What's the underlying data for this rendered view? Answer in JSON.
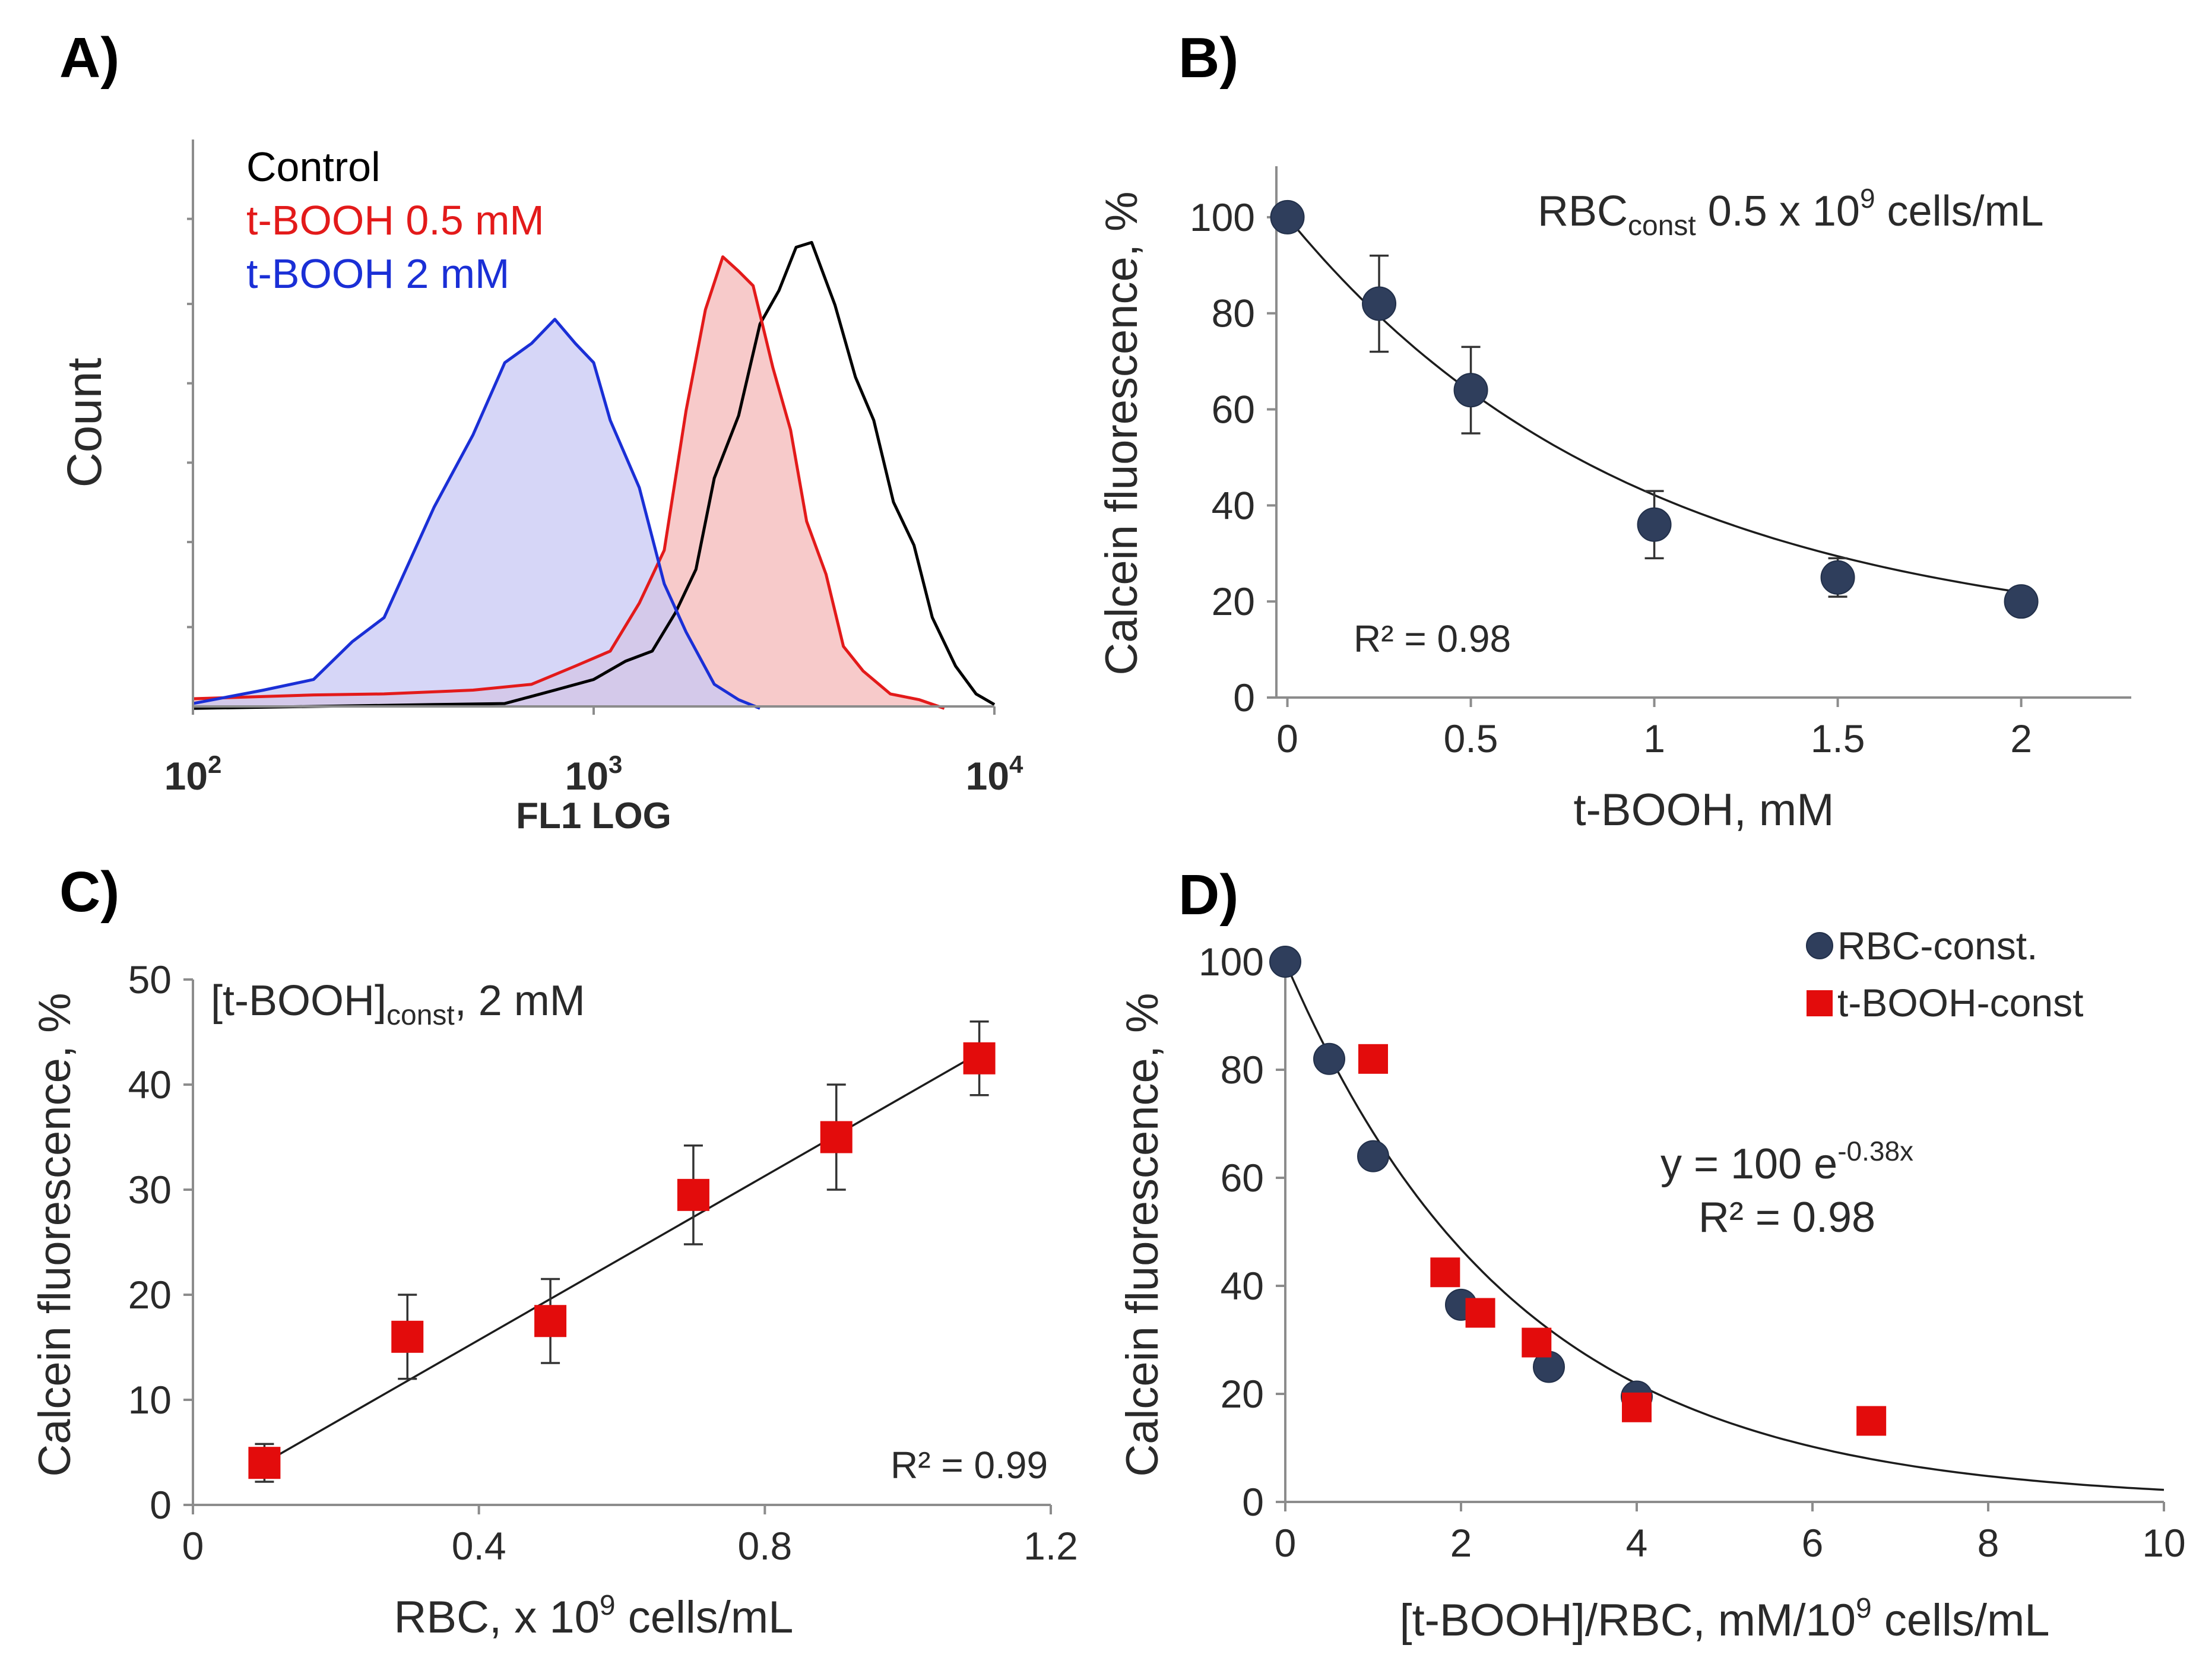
{
  "panels": {
    "A": "A)",
    "B": "B)",
    "C": "C)",
    "D": "D)"
  },
  "colors": {
    "control": "#000000",
    "tbooh_05": "#e31a1a",
    "tbooh_2": "#1a2fd6",
    "fill_red": "#f4b8b8",
    "fill_blue": "#c8c8f4",
    "circle": "#2f3e5c",
    "square": "#e30c0c"
  },
  "chart_data": [
    {
      "id": "A",
      "type": "line",
      "title": "",
      "xlabel": "FL1 LOG",
      "ylabel": "Count",
      "xscale": "log",
      "xlim": [
        100,
        10000
      ],
      "x_ticks": [
        {
          "base": "10",
          "exp": "2"
        },
        {
          "base": "10",
          "exp": "3"
        },
        {
          "base": "10",
          "exp": "4"
        }
      ],
      "ylim": [
        0,
        100
      ],
      "legend_placement": "top-left",
      "series": [
        {
          "name": "Control",
          "filled": false,
          "x": [
            100,
            400,
            600,
            800,
            1000,
            1200,
            1400,
            1600,
            1800,
            2000,
            2300,
            2600,
            2900,
            3200,
            3500,
            4000,
            4500,
            5000,
            5600,
            6300,
            7000,
            8000,
            9000,
            10000
          ],
          "y": [
            0,
            0,
            1,
            3,
            6,
            9,
            13,
            18,
            30,
            46,
            62,
            78,
            88,
            94,
            98,
            82,
            70,
            58,
            44,
            32,
            20,
            8,
            3,
            0
          ]
        },
        {
          "name": "t-BOOH 0.5 mM",
          "filled": true,
          "x": [
            100,
            200,
            300,
            500,
            700,
            900,
            1100,
            1300,
            1500,
            1700,
            1900,
            2100,
            2300,
            2500,
            2800,
            3100,
            3400,
            3800,
            4200,
            4700,
            5500,
            6500,
            7500
          ],
          "y": [
            2,
            2,
            3,
            3,
            5,
            8,
            13,
            20,
            34,
            60,
            84,
            92,
            92,
            86,
            72,
            56,
            40,
            26,
            14,
            7,
            3,
            1,
            0
          ]
        },
        {
          "name": "t-BOOH 2 mM",
          "filled": true,
          "x": [
            100,
            150,
            200,
            250,
            300,
            400,
            500,
            600,
            700,
            800,
            900,
            1000,
            1100,
            1300,
            1500,
            1700,
            2000,
            2300,
            2600
          ],
          "y": [
            1,
            3,
            6,
            12,
            20,
            40,
            58,
            70,
            77,
            79,
            77,
            70,
            61,
            44,
            27,
            14,
            5,
            1,
            0
          ]
        }
      ]
    },
    {
      "id": "B",
      "type": "scatter",
      "title": "",
      "annotation": {
        "main": "RBC",
        "sub": "const",
        "mid": " 0.5 x 10",
        "sup": "9",
        "tail": " cells/mL"
      },
      "xlabel": "t-BOOH, mM",
      "ylabel": "Calcein fluorescence, %",
      "xlim": [
        -0.03,
        2.3
      ],
      "ylim": [
        0,
        110
      ],
      "x_ticks": [
        0,
        0.5,
        1,
        1.5,
        2
      ],
      "y_ticks": [
        0,
        20,
        40,
        60,
        80,
        100
      ],
      "x_tick_labels": [
        "0",
        "0.5",
        "1",
        "1.5",
        "2"
      ],
      "y_tick_labels": [
        "0",
        "20",
        "40",
        "60",
        "80",
        "100"
      ],
      "r2_label": "R² = 0.98",
      "fit": {
        "equation": "exponential decay to plateau",
        "plateau": 11,
        "amplitude": 89,
        "rate": 1.05
      },
      "series": [
        {
          "name": "RBC-const.",
          "marker": "circle",
          "x": [
            0,
            0.25,
            0.5,
            1,
            1.5,
            2
          ],
          "y": [
            100,
            82,
            64,
            36,
            25,
            20
          ],
          "err": [
            0,
            10,
            9,
            7,
            4,
            0
          ]
        }
      ]
    },
    {
      "id": "C",
      "type": "scatter",
      "title": "",
      "annotation": {
        "main": "[t-BOOH]",
        "sub": "const",
        "tail": ", 2 mM"
      },
      "xlabel_parts": {
        "pre": "RBC, x 10",
        "sup": "9",
        "post": " cells/mL"
      },
      "ylabel": "Calcein fluorescence, %",
      "xlim": [
        0,
        1.2
      ],
      "ylim": [
        0,
        50
      ],
      "x_ticks": [
        0,
        0.4,
        0.8,
        1.2
      ],
      "y_ticks": [
        0,
        10,
        20,
        30,
        40,
        50
      ],
      "x_tick_labels": [
        "0",
        "0.4",
        "0.8",
        "1.2"
      ],
      "y_tick_labels": [
        "0",
        "10",
        "20",
        "30",
        "40",
        "50"
      ],
      "r2_label": "R² = 0.99",
      "fit": {
        "equation": "linear",
        "slope": 39,
        "intercept": 0.1
      },
      "series": [
        {
          "name": "t-BOOH-const",
          "marker": "square",
          "x": [
            0.1,
            0.3,
            0.5,
            0.7,
            0.9,
            1.1
          ],
          "y": [
            4,
            16,
            17.5,
            29.5,
            35,
            42.5
          ],
          "err": [
            1.8,
            4,
            4,
            4.7,
            5,
            3.5
          ]
        }
      ]
    },
    {
      "id": "D",
      "type": "scatter",
      "title": "",
      "xlabel_parts": {
        "pre": "[t-BOOH]/RBC, mM/10",
        "sup": "9",
        "post": " cells/mL"
      },
      "ylabel": "Calcein fluorescence, %",
      "xlim": [
        0,
        10
      ],
      "ylim": [
        0,
        100
      ],
      "x_ticks": [
        0,
        2,
        4,
        6,
        8,
        10
      ],
      "y_ticks": [
        0,
        20,
        40,
        60,
        80,
        100
      ],
      "x_tick_labels": [
        "0",
        "2",
        "4",
        "6",
        "8",
        "10"
      ],
      "y_tick_labels": [
        "0",
        "20",
        "40",
        "60",
        "80",
        "100"
      ],
      "equation": {
        "pre": "y = 100 e",
        "sup": "-0.38x"
      },
      "r2_label": "R² = 0.98",
      "legend_placement": "top-right",
      "legend": [
        "RBC-const.",
        "t-BOOH-const"
      ],
      "fit": {
        "equation": "y = 100 e^(-0.38x)",
        "a": 100,
        "k": 0.38
      },
      "series": [
        {
          "name": "RBC-const.",
          "marker": "circle",
          "x": [
            0,
            0.5,
            1,
            2,
            3,
            4
          ],
          "y": [
            100,
            82,
            64,
            36.5,
            25,
            19.5
          ]
        },
        {
          "name": "t-BOOH-const",
          "marker": "square",
          "x": [
            1,
            1.82,
            2.22,
            2.86,
            4,
            6.67
          ],
          "y": [
            82,
            42.5,
            35,
            29.5,
            17.5,
            15
          ]
        }
      ]
    }
  ]
}
